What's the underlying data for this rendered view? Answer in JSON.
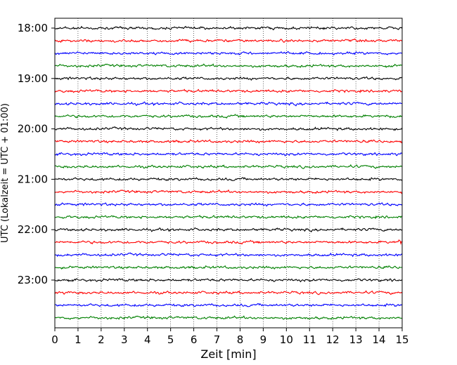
{
  "chart_data": {
    "type": "line",
    "title": "",
    "xlabel": "Zeit  [min]",
    "ylabel": "UTC (Lokalzeit = UTC + 01:00)",
    "xlim": [
      0,
      15
    ],
    "x_ticks": [
      "0",
      "1",
      "2",
      "3",
      "4",
      "5",
      "6",
      "7",
      "8",
      "9",
      "10",
      "11",
      "12",
      "13",
      "14",
      "15"
    ],
    "y_tick_labels": [
      "18:00",
      "19:00",
      "20:00",
      "21:00",
      "22:00",
      "23:00"
    ],
    "start_time": "18:00",
    "trace_interval_min": 15,
    "traces_per_hour": 4,
    "num_traces": 24,
    "grid": "vertical dotted",
    "trace_colors": [
      "#000000",
      "#ff0000",
      "#0000ff",
      "#008000"
    ],
    "features": [
      {
        "trace_index": 17,
        "x_min": 14.9,
        "note": "spike"
      }
    ]
  }
}
